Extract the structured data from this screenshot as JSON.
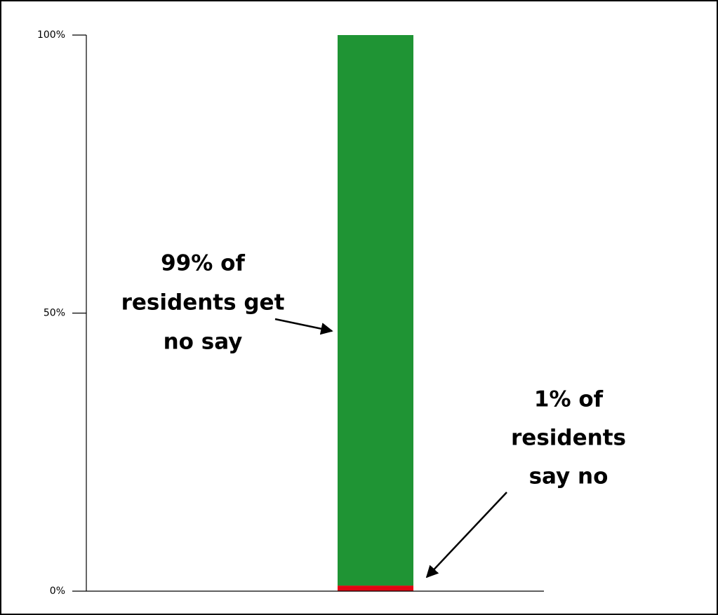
{
  "chart_data": {
    "type": "stacked_bar",
    "categories": [
      null
    ],
    "series": [
      {
        "name": "say no",
        "color": "#e30613",
        "values": [
          1
        ]
      },
      {
        "name": "get no say",
        "color": "#1f9434",
        "values": [
          99
        ]
      }
    ],
    "ylim": [
      0,
      100
    ],
    "yticks": [
      {
        "value": 0,
        "label": "0%"
      },
      {
        "value": 50,
        "label": "50%"
      },
      {
        "value": 100,
        "label": "100%"
      }
    ],
    "grid": false,
    "annotations": [
      {
        "lines": [
          "99% of",
          "residents get",
          "no say"
        ]
      },
      {
        "lines": [
          "1% of",
          "residents",
          "say no"
        ]
      }
    ]
  }
}
